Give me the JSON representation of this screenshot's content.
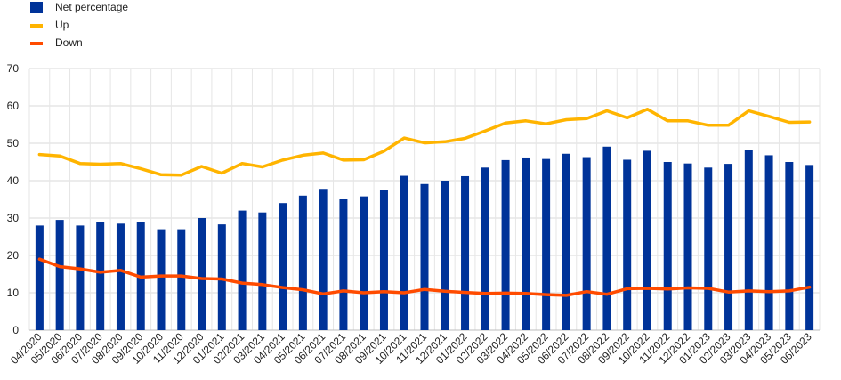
{
  "chart_data": {
    "type": "bar",
    "title": "",
    "xlabel": "",
    "ylabel": "",
    "ylim": [
      0,
      70
    ],
    "yticks": [
      0,
      10,
      20,
      30,
      40,
      50,
      60,
      70
    ],
    "grid": true,
    "legend_position": "top-left",
    "categories": [
      "04/2020",
      "05/2020",
      "06/2020",
      "07/2020",
      "08/2020",
      "09/2020",
      "10/2020",
      "11/2020",
      "12/2020",
      "01/2021",
      "02/2021",
      "03/2021",
      "04/2021",
      "05/2021",
      "06/2021",
      "07/2021",
      "08/2021",
      "09/2021",
      "10/2021",
      "11/2021",
      "12/2021",
      "01/2022",
      "02/2022",
      "03/2022",
      "04/2022",
      "05/2022",
      "06/2022",
      "07/2022",
      "08/2022",
      "09/2022",
      "10/2022",
      "11/2022",
      "12/2022",
      "01/2023",
      "02/2023",
      "03/2023",
      "04/2023",
      "05/2023",
      "06/2023"
    ],
    "series": [
      {
        "name": "Net percentage",
        "kind": "bar",
        "color": "#003399",
        "values": [
          28,
          29.5,
          28,
          29,
          28.5,
          29,
          27,
          27,
          30,
          28.3,
          32,
          31.5,
          34,
          36,
          37.8,
          35,
          35.8,
          37.5,
          41.3,
          39.1,
          40,
          41.2,
          43.5,
          45.5,
          46.2,
          45.8,
          47.2,
          46.3,
          49.1,
          45.6,
          48,
          45,
          44.6,
          43.5,
          44.5,
          48.2,
          46.8,
          45,
          44.2
        ]
      },
      {
        "name": "Up",
        "kind": "line",
        "color": "#FFB400",
        "values": [
          47,
          46.6,
          44.6,
          44.4,
          44.6,
          43.2,
          41.6,
          41.5,
          43.8,
          42,
          44.6,
          43.7,
          45.5,
          46.8,
          47.4,
          45.5,
          45.6,
          47.9,
          51.4,
          50.1,
          50.4,
          51.3,
          53.3,
          55.4,
          56,
          55.2,
          56.3,
          56.6,
          58.7,
          56.8,
          59.1,
          56,
          56,
          54.8,
          54.8,
          58.7,
          57.2,
          55.6,
          55.7
        ]
      },
      {
        "name": "Down",
        "kind": "line",
        "color": "#FF4B00",
        "values": [
          19,
          17,
          16.4,
          15.5,
          16,
          14.2,
          14.5,
          14.5,
          13.8,
          13.7,
          12.6,
          12.2,
          11.4,
          10.8,
          9.7,
          10.5,
          10,
          10.3,
          10,
          10.9,
          10.4,
          10.1,
          9.8,
          9.9,
          9.8,
          9.5,
          9.3,
          10.3,
          9.6,
          11.1,
          11.2,
          11,
          11.3,
          11.2,
          10.2,
          10.5,
          10.3,
          10.5,
          11.5
        ]
      }
    ]
  }
}
